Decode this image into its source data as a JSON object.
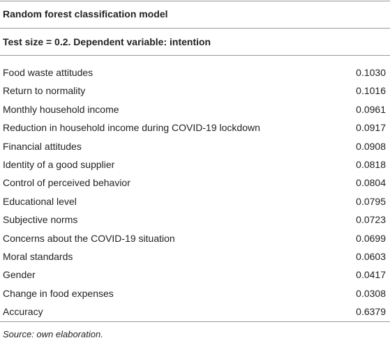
{
  "table": {
    "title": "Random forest classification model",
    "subtitle": "Test size = 0.2. Dependent variable: intention",
    "rows": [
      [
        "Food waste attitudes",
        "0.1030"
      ],
      [
        "Return to normality",
        "0.1016"
      ],
      [
        "Monthly household income",
        "0.0961"
      ],
      [
        "Reduction in household income during COVID-19 lockdown",
        "0.0917"
      ],
      [
        "Financial attitudes",
        "0.0908"
      ],
      [
        "Identity of a good supplier",
        "0.0818"
      ],
      [
        "Control of perceived behavior",
        "0.0804"
      ],
      [
        "Educational level",
        "0.0795"
      ],
      [
        "Subjective norms",
        "0.0723"
      ],
      [
        "Concerns about the COVID-19 situation",
        "0.0699"
      ],
      [
        "Moral standards",
        "0.0603"
      ],
      [
        "Gender",
        "0.0417"
      ],
      [
        "Change in food expenses",
        "0.0308"
      ],
      [
        "Accuracy",
        "0.6379"
      ]
    ],
    "source": "Source: own elaboration."
  }
}
